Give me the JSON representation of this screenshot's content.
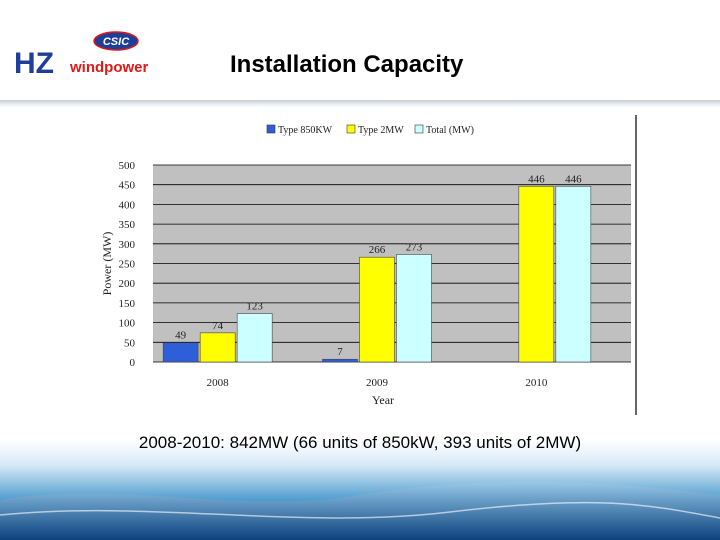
{
  "header": {
    "logo": {
      "badge_text": "CSIC",
      "brand_hz": "HZ",
      "brand_wind": "windpower"
    },
    "title": "Installation Capacity"
  },
  "caption": "2008-2010: 842MW (66 units of 850kW, 393 units of 2MW)",
  "colors": {
    "series_850": "#2e5fd9",
    "series_2mw": "#ffff00",
    "series_total": "#ccffff",
    "plot_bg": "#c0c0c0",
    "logo_blue": "#1d3f9a",
    "logo_red": "#e01818"
  },
  "chart_data": {
    "type": "bar",
    "categories": [
      "2008",
      "2009",
      "2010"
    ],
    "series": [
      {
        "name": "Type 850KW",
        "values": [
          49,
          7,
          null
        ],
        "labels": [
          "49",
          "7",
          ""
        ]
      },
      {
        "name": "Type 2MW",
        "values": [
          74,
          266,
          446
        ],
        "labels": [
          "74",
          "266",
          "446"
        ]
      },
      {
        "name": "Total (MW)",
        "values": [
          123,
          273,
          446
        ],
        "labels": [
          "123",
          "273",
          "446"
        ]
      }
    ],
    "xlabel": "Year",
    "ylabel": "Power (MW)",
    "ylim": [
      0,
      500
    ],
    "yticks": [
      "0",
      "50",
      "100",
      "150",
      "200",
      "250",
      "300",
      "350",
      "400",
      "450",
      "500"
    ],
    "grid": "horizontal",
    "legend_position": "top"
  }
}
